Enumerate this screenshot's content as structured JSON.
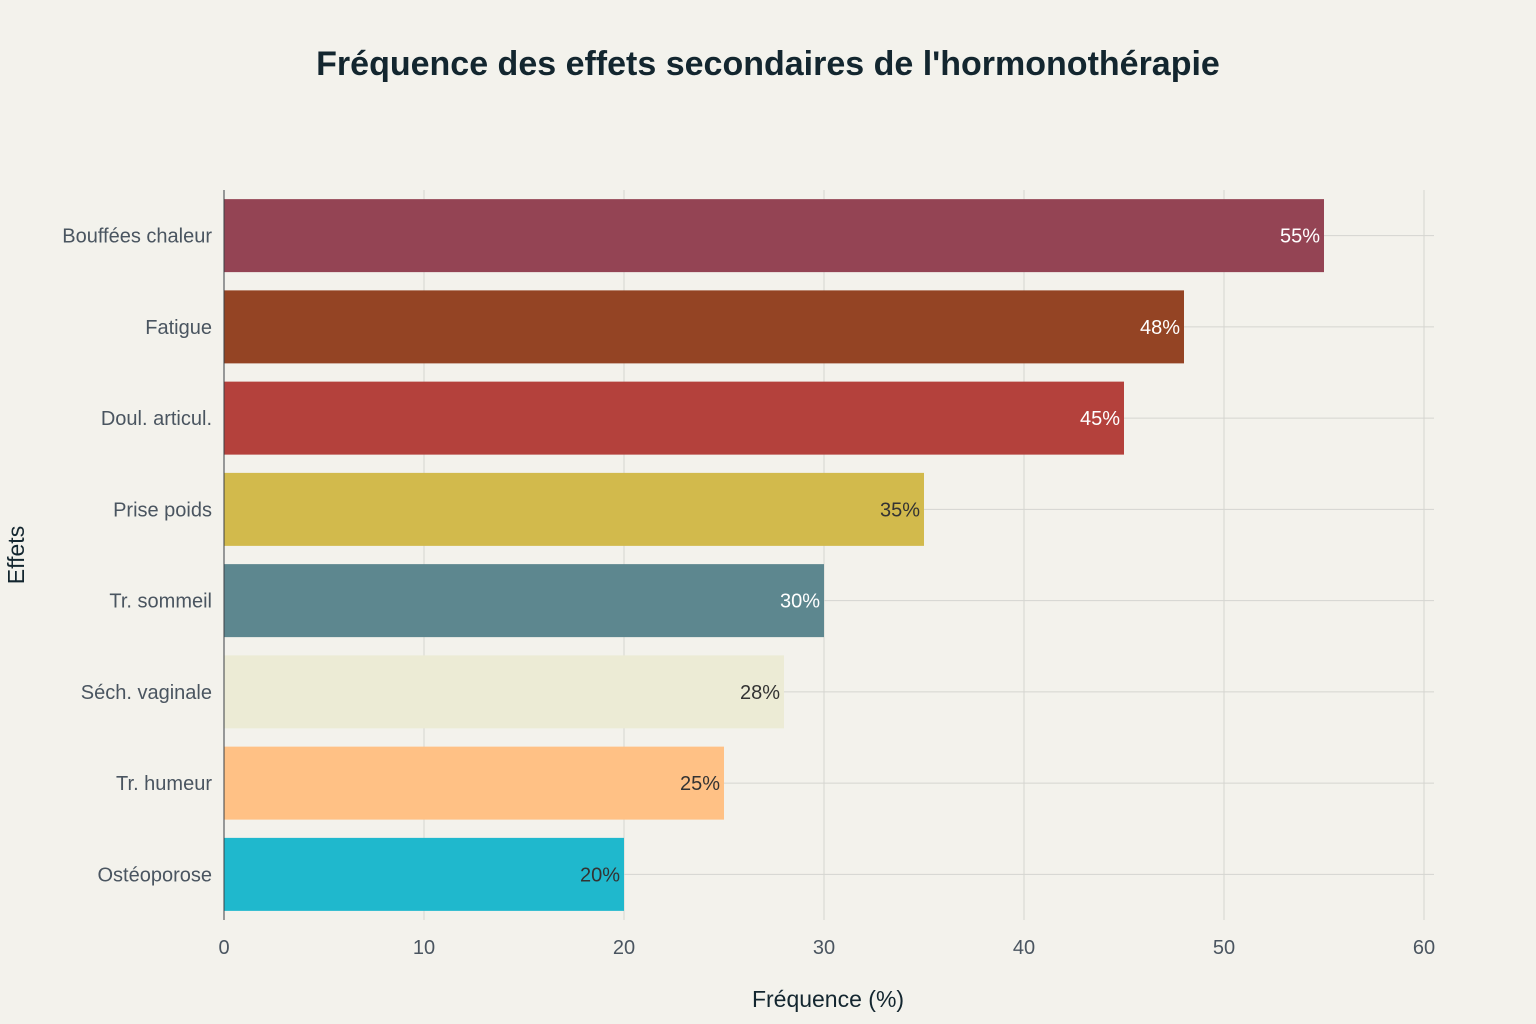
{
  "chart_data": {
    "type": "bar",
    "orientation": "horizontal",
    "title": "Fréquence des effets secondaires de l'hormonothérapie",
    "xlabel": "Fréquence (%)",
    "ylabel": "Effets",
    "xlim": [
      0,
      60
    ],
    "xticks": [
      0,
      10,
      20,
      30,
      40,
      50,
      60
    ],
    "grid": true,
    "categories": [
      "Bouffées chaleur",
      "Fatigue",
      "Doul. articul.",
      "Prise poids",
      "Tr. sommeil",
      "Séch. vaginale",
      "Tr. humeur",
      "Ostéoporose"
    ],
    "values": [
      55,
      48,
      45,
      35,
      30,
      28,
      25,
      20
    ],
    "value_labels": [
      "55%",
      "48%",
      "45%",
      "35%",
      "30%",
      "28%",
      "25%",
      "20%"
    ],
    "colors": [
      "#944454",
      "#944424",
      "#b4413c",
      "#d2ba4c",
      "#5d878f",
      "#ecebd5",
      "#ffc185",
      "#1fb8cd"
    ],
    "label_colors": [
      "#ffffff",
      "#ffffff",
      "#ffffff",
      "#333333",
      "#ffffff",
      "#333333",
      "#333333",
      "#333333"
    ]
  }
}
